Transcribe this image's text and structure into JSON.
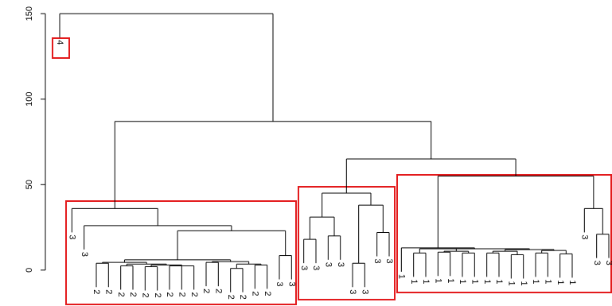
{
  "chart_data": {
    "type": "dendrogram",
    "ylim": [
      -21,
      158
    ],
    "yticks": [
      0,
      50,
      100,
      150
    ],
    "tree": {
      "height": 150,
      "children": [
        {
          "label": "4"
        },
        {
          "height": 87,
          "children": [
            {
              "height": 36,
              "children": [
                {
                  "label": "3"
                },
                {
                  "height": 26,
                  "children": [
                    {
                      "label": "3"
                    },
                    {
                      "height": 23,
                      "children": [
                        {
                          "height": 6,
                          "children": [
                            {
                              "height": 4.5,
                              "children": [
                                {
                                  "height": 4,
                                  "children": [
                                    {
                                      "label": "2"
                                    },
                                    {
                                      "label": "2"
                                    }
                                  ]
                                },
                                {
                                  "height": 3.5,
                                  "children": [
                                    {
                                      "height": 2.5,
                                      "children": [
                                        {
                                          "label": "2"
                                        },
                                        {
                                          "label": "2"
                                        }
                                      ]
                                    },
                                    {
                                      "height": 3,
                                      "children": [
                                        {
                                          "height": 2,
                                          "children": [
                                            {
                                              "label": "2"
                                            },
                                            {
                                              "label": "2"
                                            }
                                          ]
                                        },
                                        {
                                          "height": 2.5,
                                          "children": [
                                            {
                                              "label": "2"
                                            },
                                            {
                                              "label": "2"
                                            },
                                            {
                                              "label": "2"
                                            }
                                          ]
                                        }
                                      ]
                                    }
                                  ]
                                }
                              ]
                            },
                            {
                              "height": 5,
                              "children": [
                                {
                                  "height": 4.5,
                                  "children": [
                                    {
                                      "label": "2"
                                    },
                                    {
                                      "label": "2"
                                    }
                                  ]
                                },
                                {
                                  "height": 3.5,
                                  "children": [
                                    {
                                      "height": 1,
                                      "children": [
                                        {
                                          "label": "2"
                                        },
                                        {
                                          "label": "2"
                                        }
                                      ]
                                    },
                                    {
                                      "height": 3,
                                      "children": [
                                        {
                                          "label": "2"
                                        },
                                        {
                                          "label": "2"
                                        }
                                      ]
                                    }
                                  ]
                                }
                              ]
                            }
                          ]
                        },
                        {
                          "height": 8.5,
                          "children": [
                            {
                              "label": "3"
                            },
                            {
                              "label": "3"
                            }
                          ]
                        }
                      ]
                    }
                  ]
                }
              ]
            },
            {
              "height": 65,
              "children": [
                {
                  "height": 45,
                  "children": [
                    {
                      "height": 31,
                      "children": [
                        {
                          "height": 18,
                          "children": [
                            {
                              "label": "3"
                            },
                            {
                              "label": "3"
                            }
                          ]
                        },
                        {
                          "height": 20,
                          "children": [
                            {
                              "label": "3"
                            },
                            {
                              "label": "3"
                            }
                          ]
                        }
                      ]
                    },
                    {
                      "height": 38,
                      "children": [
                        {
                          "height": 4,
                          "children": [
                            {
                              "label": "3"
                            },
                            {
                              "label": "3"
                            }
                          ]
                        },
                        {
                          "height": 22,
                          "children": [
                            {
                              "label": "3"
                            },
                            {
                              "label": "3"
                            }
                          ]
                        }
                      ]
                    }
                  ]
                },
                {
                  "height": 55,
                  "children": [
                    {
                      "height": 13,
                      "children": [
                        {
                          "label": "1"
                        },
                        {
                          "height": 12.5,
                          "children": [
                            {
                              "height": 10,
                              "children": [
                                {
                                  "label": "1"
                                },
                                {
                                  "label": "1"
                                }
                              ]
                            },
                            {
                              "height": 11,
                              "children": [
                                {
                                  "height": 10.5,
                                  "children": [
                                    {
                                      "label": "1"
                                    },
                                    {
                                      "label": "1"
                                    }
                                  ]
                                },
                                {
                                  "height": 10,
                                  "children": [
                                    {
                                      "label": "1"
                                    },
                                    {
                                      "label": "1"
                                    }
                                  ]
                                }
                              ]
                            },
                            {
                              "height": 12,
                              "children": [
                                {
                                  "height": 11,
                                  "children": [
                                    {
                                      "height": 10,
                                      "children": [
                                        {
                                          "label": "1"
                                        },
                                        {
                                          "label": "1"
                                        }
                                      ]
                                    },
                                    {
                                      "height": 9,
                                      "children": [
                                        {
                                          "label": "1"
                                        },
                                        {
                                          "label": "1"
                                        }
                                      ]
                                    }
                                  ]
                                },
                                {
                                  "height": 11.5,
                                  "children": [
                                    {
                                      "height": 10,
                                      "children": [
                                        {
                                          "label": "1"
                                        },
                                        {
                                          "label": "1"
                                        }
                                      ]
                                    },
                                    {
                                      "height": 9.5,
                                      "children": [
                                        {
                                          "label": "1"
                                        },
                                        {
                                          "label": "1"
                                        }
                                      ]
                                    }
                                  ]
                                }
                              ]
                            }
                          ]
                        }
                      ]
                    },
                    {
                      "height": 36,
                      "children": [
                        {
                          "label": "3"
                        },
                        {
                          "height": 21,
                          "children": [
                            {
                              "label": "3"
                            },
                            {
                              "label": "3"
                            }
                          ]
                        }
                      ]
                    }
                  ]
                }
              ]
            }
          ]
        }
      ]
    }
  }
}
